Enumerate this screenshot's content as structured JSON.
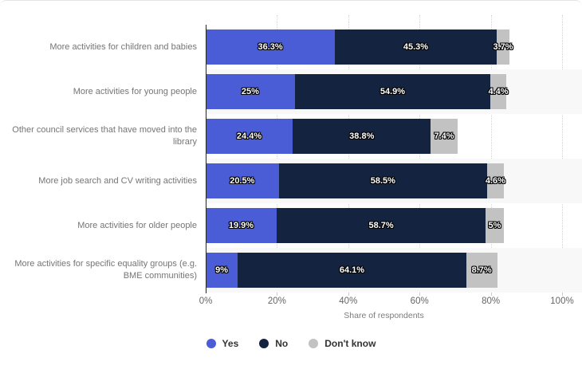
{
  "chart_data": {
    "type": "bar",
    "orientation": "horizontal",
    "stacked": true,
    "title": "",
    "xlabel": "Share of respondents",
    "ylabel": "",
    "xlim": [
      0,
      100
    ],
    "xticks": [
      {
        "value": 0,
        "label": "0%"
      },
      {
        "value": 20,
        "label": "20%"
      },
      {
        "value": 40,
        "label": "40%"
      },
      {
        "value": 60,
        "label": "60%"
      },
      {
        "value": 80,
        "label": "80%"
      },
      {
        "value": 100,
        "label": "100%"
      }
    ],
    "grid": "dotted-vertical",
    "legend_position": "bottom",
    "categories": [
      "More activities for children and babies",
      "More activities for young people",
      "Other council services that have moved into the library",
      "More job search and CV writing activities",
      "More activities for older people",
      "More activities for specific equality groups (e.g. BME communities)"
    ],
    "series": [
      {
        "name": "Yes",
        "color": "#4a5cd6",
        "values": [
          36.3,
          25,
          24.4,
          20.5,
          19.9,
          9
        ]
      },
      {
        "name": "No",
        "color": "#142440",
        "values": [
          45.3,
          54.9,
          38.8,
          58.5,
          58.7,
          64.1
        ]
      },
      {
        "name": "Don't know",
        "color": "#c2c2c2",
        "values": [
          3.7,
          4.4,
          7.4,
          4.6,
          5,
          8.7
        ]
      }
    ],
    "value_labels": [
      [
        "36.3%",
        "45.3%",
        "3.7%"
      ],
      [
        "25%",
        "54.9%",
        "4.4%"
      ],
      [
        "24.4%",
        "38.8%",
        "7.4%"
      ],
      [
        "20.5%",
        "58.5%",
        "4.6%"
      ],
      [
        "19.9%",
        "58.7%",
        "5%"
      ],
      [
        "9%",
        "64.1%",
        "8.7%"
      ]
    ]
  },
  "style": {
    "stripe_color": "#f8f8f8",
    "gridline_color": "#d6d6d6",
    "axis_line_color": "#262626",
    "category_label_color": "#757575",
    "tick_label_color": "#666666",
    "legend_text_color": "#333333"
  }
}
